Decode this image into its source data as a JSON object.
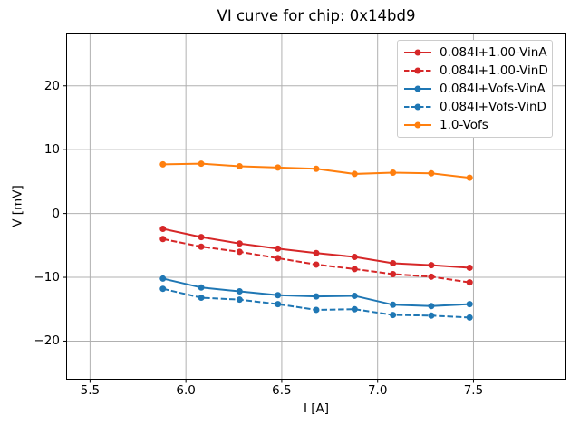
{
  "chart_data": {
    "type": "line",
    "title": "VI curve for chip: 0x14bd9",
    "xlabel": "I [A]",
    "ylabel": "V [mV]",
    "xlim": [
      5.38,
      7.98
    ],
    "ylim": [
      -25.9,
      28.2
    ],
    "grid": true,
    "legend_position": "upper right",
    "xticks": {
      "values": [
        5.5,
        6.0,
        6.5,
        7.0,
        7.5
      ],
      "labels": [
        "5.5",
        "6.0",
        "6.5",
        "7.0",
        "7.5"
      ]
    },
    "yticks": {
      "values": [
        -20,
        -10,
        0,
        10,
        20
      ],
      "labels": [
        "−20",
        "−10",
        "0",
        "10",
        "20"
      ]
    },
    "x": [
      5.88,
      6.08,
      6.28,
      6.48,
      6.68,
      6.88,
      7.08,
      7.28,
      7.48
    ],
    "series": [
      {
        "name": "0.084I+1.00-VinA",
        "color": "#d62728",
        "style": "solid",
        "marker": "circle",
        "values": [
          -2.4,
          -3.7,
          -4.7,
          -5.5,
          -6.2,
          -6.8,
          -7.8,
          -8.1,
          -8.5
        ]
      },
      {
        "name": "0.084I+1.00-VinD",
        "color": "#d62728",
        "style": "dashed",
        "marker": "circle",
        "values": [
          -4.0,
          -5.2,
          -6.0,
          -7.0,
          -8.0,
          -8.7,
          -9.5,
          -9.9,
          -10.8
        ]
      },
      {
        "name": "0.084I+Vofs-VinA",
        "color": "#1f77b4",
        "style": "solid",
        "marker": "circle",
        "values": [
          -10.2,
          -11.6,
          -12.2,
          -12.8,
          -13.0,
          -12.9,
          -14.3,
          -14.5,
          -14.2
        ]
      },
      {
        "name": "0.084I+Vofs-VinD",
        "color": "#1f77b4",
        "style": "dashed",
        "marker": "circle",
        "values": [
          -11.8,
          -13.2,
          -13.5,
          -14.2,
          -15.1,
          -15.0,
          -15.9,
          -16.0,
          -16.3
        ]
      },
      {
        "name": "1.0-Vofs",
        "color": "#ff7f0e",
        "style": "solid",
        "marker": "circle",
        "values": [
          7.7,
          7.8,
          7.4,
          7.2,
          7.0,
          6.2,
          6.4,
          6.3,
          5.6
        ]
      }
    ],
    "colors": {
      "grid": "#b0b0b0",
      "spine": "#000000",
      "legend_border": "#cccccc",
      "background": "#ffffff"
    }
  }
}
